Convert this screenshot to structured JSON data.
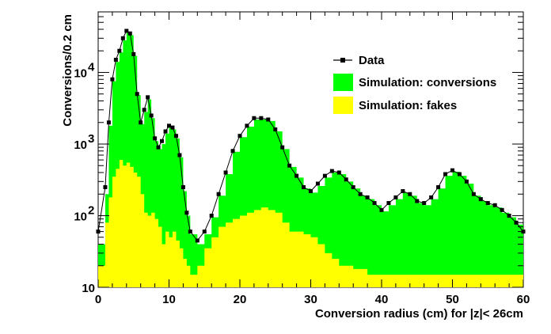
{
  "chart_data": {
    "type": "histogram",
    "xlabel": "Conversion radius (cm) for |z|< 26cm",
    "ylabel": "Conversions/0.2 cm",
    "xlim": [
      0,
      60
    ],
    "ylim": [
      10,
      70000
    ],
    "y_scale": "log",
    "x_ticks": [
      "0",
      "10",
      "20",
      "30",
      "40",
      "50",
      "60"
    ],
    "y_ticks": [
      {
        "value": 10,
        "base": "10",
        "exp": ""
      },
      {
        "value": 100,
        "base": "10",
        "exp": "2"
      },
      {
        "value": 1000,
        "base": "10",
        "exp": "3"
      },
      {
        "value": 10000,
        "base": "10",
        "exp": "4"
      }
    ],
    "legend": {
      "position": "top-right",
      "entries": [
        {
          "label": "Data",
          "marker": "line-with-square"
        },
        {
          "label": "Simulation: conversions",
          "color": "#00ff00"
        },
        {
          "label": "Simulation: fakes",
          "color": "#ffff00"
        }
      ]
    },
    "colors": {
      "conversions": "#00ff00",
      "fakes": "#ffff00",
      "data": "#000000",
      "axes": "#000000"
    },
    "series": [
      {
        "name": "Data",
        "style": "markers",
        "x": [
          0,
          1,
          1.5,
          2,
          2.5,
          3,
          3.5,
          4,
          4.5,
          5,
          5.5,
          6,
          6.5,
          7,
          7.5,
          8,
          8.5,
          9,
          9.5,
          10,
          10.5,
          11,
          11.5,
          12,
          12.5,
          13,
          14,
          15,
          16,
          17,
          18,
          19,
          20,
          21,
          22,
          23,
          24,
          25,
          26,
          27,
          28,
          29,
          30,
          31,
          32,
          33,
          34,
          35,
          36,
          37,
          38,
          39,
          40,
          41,
          42,
          43,
          44,
          45,
          46,
          47,
          48,
          49,
          50,
          51,
          52,
          53,
          54,
          55,
          56,
          57,
          58,
          59,
          60
        ],
        "y": [
          60,
          250,
          2000,
          8000,
          15000,
          20000,
          30000,
          38000,
          35000,
          18000,
          5000,
          2000,
          3000,
          4500,
          2500,
          1200,
          900,
          1100,
          1500,
          1800,
          1700,
          1300,
          700,
          250,
          110,
          60,
          45,
          60,
          100,
          200,
          400,
          800,
          1300,
          1800,
          2300,
          2300,
          2200,
          1600,
          900,
          500,
          360,
          250,
          220,
          280,
          360,
          420,
          400,
          320,
          250,
          200,
          180,
          150,
          120,
          150,
          180,
          220,
          200,
          160,
          150,
          180,
          250,
          380,
          430,
          380,
          300,
          200,
          170,
          150,
          140,
          120,
          100,
          80,
          60
        ]
      },
      {
        "name": "Simulation: conversions",
        "style": "filled-histogram",
        "x": [
          0,
          1,
          1.5,
          2,
          2.5,
          3,
          3.5,
          4,
          4.5,
          5,
          5.5,
          6,
          6.5,
          7,
          7.5,
          8,
          8.5,
          9,
          9.5,
          10,
          10.5,
          11,
          11.5,
          12,
          12.5,
          13,
          14,
          15,
          16,
          17,
          18,
          19,
          20,
          21,
          22,
          23,
          24,
          25,
          26,
          27,
          28,
          29,
          30,
          31,
          32,
          33,
          34,
          35,
          36,
          37,
          38,
          39,
          40,
          41,
          42,
          43,
          44,
          45,
          46,
          47,
          48,
          49,
          50,
          51,
          52,
          53,
          54,
          55,
          56,
          57,
          58,
          59,
          60
        ],
        "y": [
          40,
          200,
          1800,
          7500,
          14000,
          19000,
          28000,
          36000,
          33000,
          17000,
          4800,
          1900,
          2800,
          4200,
          2300,
          1100,
          850,
          1000,
          1400,
          1700,
          1600,
          1200,
          650,
          220,
          100,
          55,
          40,
          55,
          95,
          190,
          380,
          780,
          1250,
          1750,
          2200,
          2200,
          2100,
          1500,
          850,
          480,
          340,
          240,
          210,
          260,
          340,
          400,
          380,
          300,
          240,
          190,
          170,
          140,
          115,
          140,
          170,
          210,
          190,
          150,
          140,
          170,
          240,
          360,
          410,
          360,
          280,
          190,
          160,
          140,
          130,
          110,
          95,
          75,
          55
        ]
      },
      {
        "name": "Simulation: fakes",
        "style": "filled-histogram",
        "x": [
          0,
          1,
          1.5,
          2,
          2.5,
          3,
          3.5,
          4,
          4.5,
          5,
          5.5,
          6,
          6.5,
          7,
          7.5,
          8,
          8.5,
          9,
          9.5,
          10,
          10.5,
          11,
          11.5,
          12,
          12.5,
          13,
          14,
          15,
          16,
          17,
          18,
          19,
          20,
          21,
          22,
          23,
          24,
          25,
          26,
          27,
          28,
          29,
          30,
          31,
          32,
          33,
          34,
          35,
          36,
          37,
          38,
          39,
          40,
          41,
          42,
          43,
          44,
          45,
          46,
          47,
          48,
          49,
          50,
          51,
          52,
          53,
          54,
          55,
          56,
          57,
          58,
          59,
          60
        ],
        "y": [
          20,
          80,
          180,
          350,
          450,
          600,
          500,
          550,
          480,
          400,
          350,
          200,
          110,
          100,
          110,
          90,
          70,
          40,
          60,
          50,
          60,
          45,
          35,
          25,
          20,
          15,
          20,
          35,
          50,
          70,
          80,
          90,
          100,
          110,
          120,
          130,
          120,
          110,
          80,
          60,
          60,
          55,
          50,
          40,
          30,
          25,
          20,
          20,
          18,
          18,
          15,
          15,
          15,
          15,
          15,
          15,
          15,
          15,
          15,
          15,
          15,
          15,
          15,
          15,
          15,
          15,
          15,
          15,
          15,
          15,
          15,
          15,
          15
        ]
      }
    ]
  }
}
